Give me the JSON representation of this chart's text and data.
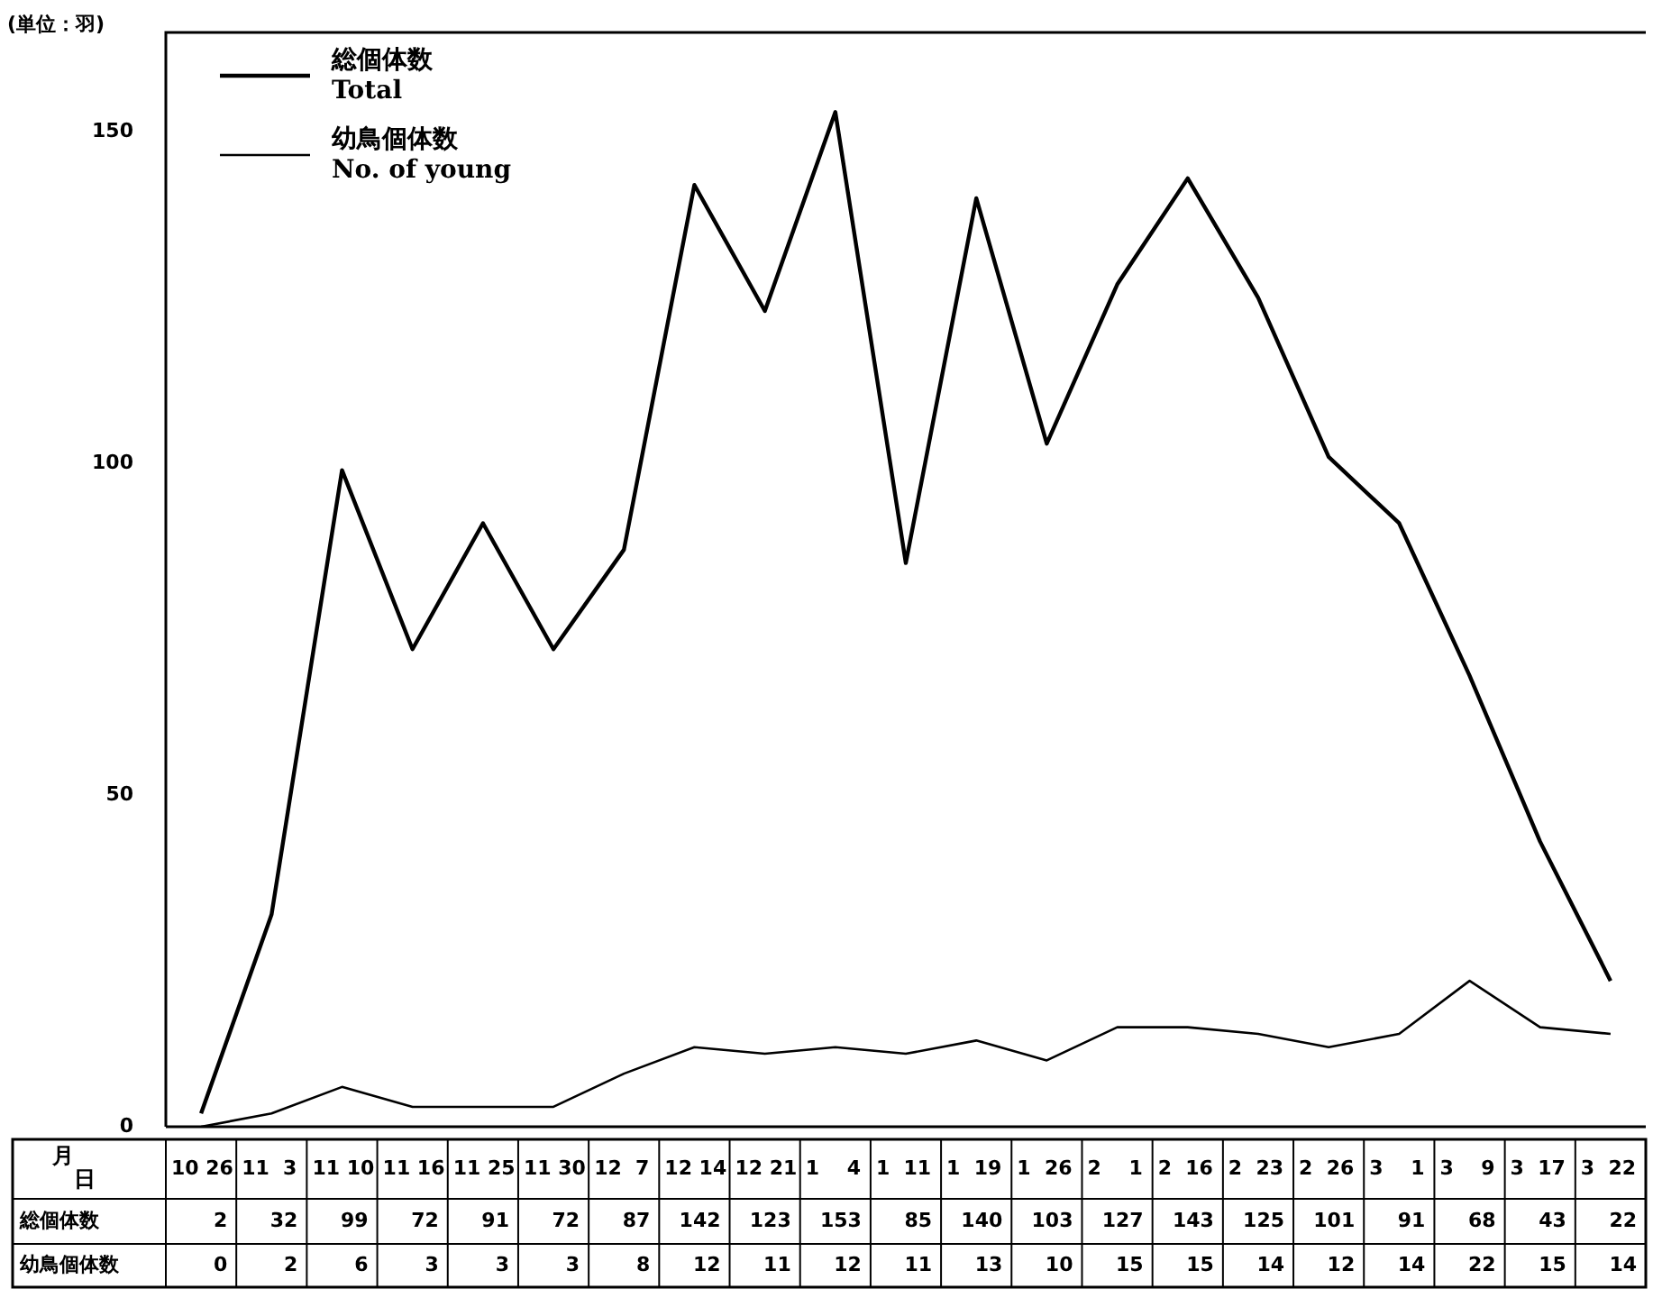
{
  "chart_data": {
    "type": "line",
    "ylabel": "(単位：羽)",
    "categories": [
      "10\n26",
      "11\n3",
      "11\n10",
      "11\n16",
      "11\n25",
      "11\n30",
      "12\n7",
      "12\n14",
      "12\n21",
      "1\n4",
      "1\n11",
      "1\n19",
      "1\n26",
      "2\n1",
      "2\n16",
      "2\n23",
      "2\n26",
      "3\n1",
      "3\n9",
      "3\n17",
      "3\n22"
    ],
    "series": [
      {
        "name": "総個体数\nTotal",
        "color": "#000000",
        "values": [
          2,
          32,
          99,
          72,
          91,
          72,
          87,
          142,
          123,
          153,
          85,
          140,
          103,
          127,
          143,
          125,
          101,
          91,
          68,
          43,
          22
        ]
      },
      {
        "name": "幼鳥個体数\nNo. of young",
        "color": "#000000",
        "values": [
          0,
          2,
          6,
          3,
          3,
          3,
          8,
          12,
          11,
          12,
          11,
          13,
          10,
          15,
          15,
          14,
          12,
          14,
          22,
          15,
          14
        ]
      }
    ],
    "annotations": [
      "月",
      "日",
      "総個体数",
      "幼鳥個体数"
    ],
    "ylim": [
      0,
      165
    ],
    "yticks": [
      0,
      50,
      100,
      150
    ],
    "grid": false,
    "legend": "top left",
    "data_labels": true,
    "marker": "none",
    "line_style": "solid"
  }
}
